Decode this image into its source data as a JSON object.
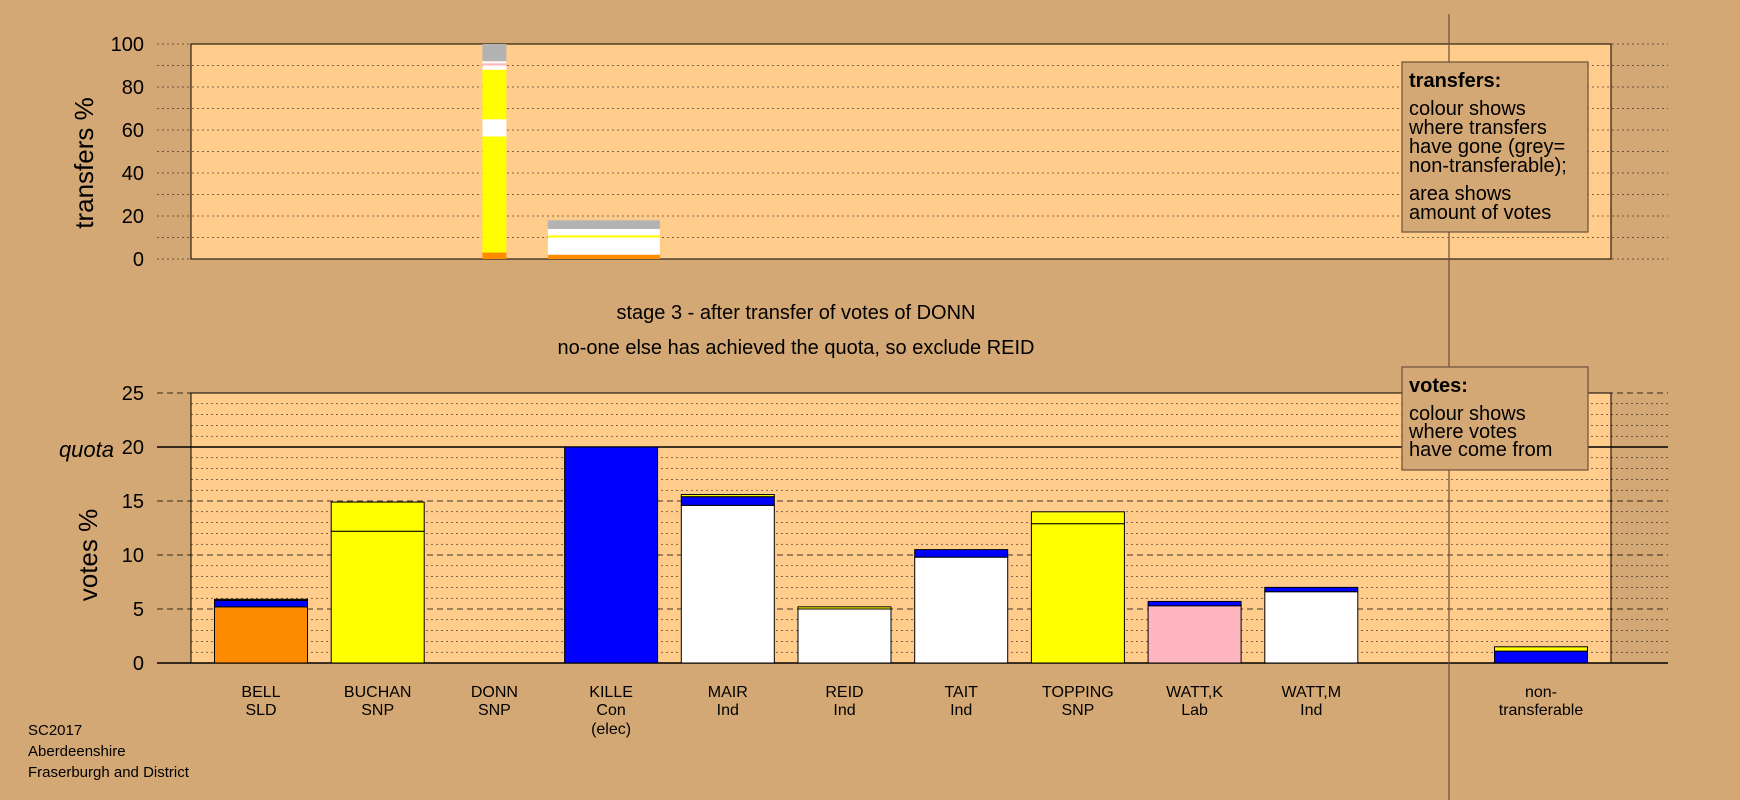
{
  "colors": {
    "background": "#D4A874",
    "panel": "#FFCC8C",
    "SLD": "#FF8C00",
    "SNP": "#FFFF00",
    "Con": "#0000FF",
    "Ind": "#FFFFFF",
    "Lab": "#FFB6C1",
    "non-transferable": "#B3B3B3"
  },
  "stage": {
    "line1": "stage 3 - after transfer of votes of DONN",
    "line2": "no-one else has achieved the quota, so exclude REID"
  },
  "transfers_box": {
    "title": "transfers:",
    "lines": [
      "colour shows",
      "where transfers",
      "have gone (grey=",
      "non-transferable);",
      "area shows",
      "amount of votes"
    ]
  },
  "votes_box": {
    "title": "votes:",
    "lines": [
      "colour shows",
      "where votes",
      "have come from"
    ]
  },
  "footer": [
    "SC2017",
    "Aberdeenshire",
    "Fraserburgh and District"
  ],
  "chart_data": [
    {
      "type": "bar",
      "stacked": true,
      "ylabel": "transfers %",
      "ylim": [
        0,
        100
      ],
      "yticks": [
        0,
        20,
        40,
        60,
        80,
        100
      ],
      "bars": [
        {
          "position": "DONN",
          "width_fraction": 1.0,
          "segments": [
            {
              "party": "SLD",
              "value": 3
            },
            {
              "party": "SNP",
              "value": 54
            },
            {
              "party": "Ind",
              "value": 8
            },
            {
              "party": "SNP",
              "value": 23
            },
            {
              "party": "Ind",
              "value": 2
            },
            {
              "party": "Lab",
              "value": 1
            },
            {
              "party": "Ind",
              "value": 1
            },
            {
              "party": "non-transferable",
              "value": 8
            }
          ]
        },
        {
          "position": "KILLE",
          "width_fraction": 0.16,
          "segments": [
            {
              "party": "SLD",
              "value": 2
            },
            {
              "party": "Ind",
              "value": 8
            },
            {
              "party": "SNP",
              "value": 1
            },
            {
              "party": "Ind",
              "value": 3
            },
            {
              "party": "non-transferable",
              "value": 4
            }
          ]
        }
      ]
    },
    {
      "type": "bar",
      "stacked": true,
      "ylabel": "votes %",
      "ylim": [
        0,
        25
      ],
      "yticks": [
        0,
        5,
        10,
        15,
        20,
        25
      ],
      "quota": 20,
      "quota_label": "quota",
      "categories": [
        {
          "name": "BELL",
          "party": "SLD"
        },
        {
          "name": "BUCHAN",
          "party": "SNP"
        },
        {
          "name": "DONN",
          "party": "SNP"
        },
        {
          "name": "KILLE",
          "party": "Con",
          "note": "(elec)"
        },
        {
          "name": "MAIR",
          "party": "Ind"
        },
        {
          "name": "REID",
          "party": "Ind"
        },
        {
          "name": "TAIT",
          "party": "Ind"
        },
        {
          "name": "TOPPING",
          "party": "SNP"
        },
        {
          "name": "WATT,K",
          "party": "Lab"
        },
        {
          "name": "WATT,M",
          "party": "Ind"
        },
        {
          "name": "non-",
          "party": "transferable"
        }
      ],
      "stacks": [
        [
          {
            "party": "SLD",
            "value": 5.2
          },
          {
            "party": "Con",
            "value": 0.6
          },
          {
            "party": "SNP",
            "value": 0.1
          }
        ],
        [
          {
            "party": "SNP",
            "value": 12.2
          },
          {
            "party": "SNP",
            "value": 2.7
          }
        ],
        [],
        [
          {
            "party": "Con",
            "value": 20.0
          }
        ],
        [
          {
            "party": "Ind",
            "value": 14.6
          },
          {
            "party": "Con",
            "value": 0.8
          },
          {
            "party": "SNP",
            "value": 0.2
          }
        ],
        [
          {
            "party": "Ind",
            "value": 5.0
          },
          {
            "party": "SNP",
            "value": 0.2
          }
        ],
        [
          {
            "party": "Ind",
            "value": 9.8
          },
          {
            "party": "Con",
            "value": 0.7
          }
        ],
        [
          {
            "party": "SNP",
            "value": 12.9
          },
          {
            "party": "SNP",
            "value": 1.1
          }
        ],
        [
          {
            "party": "Lab",
            "value": 5.3
          },
          {
            "party": "Con",
            "value": 0.4
          }
        ],
        [
          {
            "party": "Ind",
            "value": 6.6
          },
          {
            "party": "Con",
            "value": 0.4
          }
        ],
        [
          {
            "party": "Con",
            "value": 1.1
          },
          {
            "party": "SNP",
            "value": 0.4
          }
        ]
      ]
    }
  ]
}
